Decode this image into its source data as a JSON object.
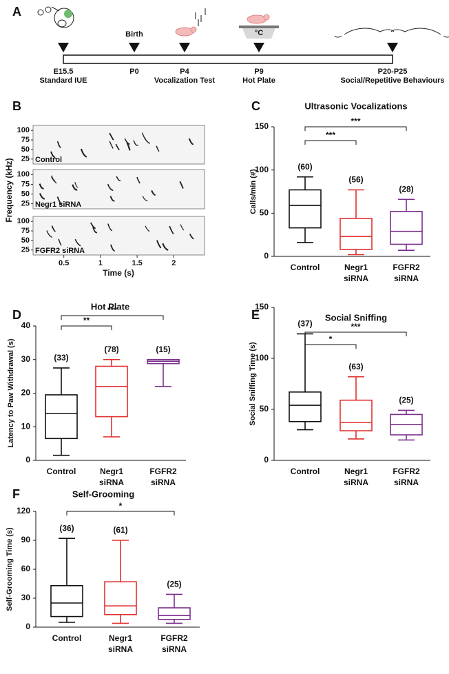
{
  "timeline": {
    "panel": "A",
    "above": "Birth",
    "plate_label": "°C",
    "events": [
      {
        "day": "E15.5",
        "label": "Standard IUE"
      },
      {
        "day": "P0"
      },
      {
        "day": "P4",
        "label": "Vocalization Test"
      },
      {
        "day": "P9",
        "label": "Hot Plate"
      },
      {
        "day": "P20-P25",
        "label": "Social/Repetitive Behaviours"
      }
    ]
  },
  "spectrogram": {
    "panel": "B",
    "ylabel": "Frequency (kHz)",
    "xlabel": "Time (s)",
    "xlim": [
      0.08,
      2.42
    ],
    "xticks": [
      0.5,
      1,
      1.5,
      2
    ],
    "ylim": [
      12,
      113
    ],
    "yticks": [
      25,
      50,
      75,
      100
    ],
    "rows": [
      "Control",
      "Negr1 siRNA",
      "FGFR2 siRNA"
    ]
  },
  "chart_data": [
    {
      "type": "box",
      "panel": "C",
      "title": "Ultrasonic Vocalizations",
      "ylabel": "Calls/min (#)",
      "categories": [
        [
          "Control"
        ],
        [
          "Negr1",
          "siRNA"
        ],
        [
          "FGFR2",
          "siRNA"
        ]
      ],
      "colors": [
        "#111111",
        "#e0312f",
        "#7b2e8c"
      ],
      "boxes": [
        {
          "min": 16,
          "q1": 33,
          "median": 59,
          "q3": 77,
          "max": 92
        },
        {
          "min": 2,
          "q1": 8,
          "median": 23,
          "q3": 44,
          "max": 77
        },
        {
          "min": 7,
          "q1": 14,
          "median": 29,
          "q3": 52,
          "max": 66
        }
      ],
      "n_labels": [
        "(60)",
        "(56)",
        "(28)"
      ],
      "comparisons": [
        {
          "pair": [
            0,
            1
          ],
          "label": "***"
        },
        {
          "pair": [
            0,
            2
          ],
          "label": "***"
        }
      ],
      "ylim": [
        0,
        150
      ],
      "yticks": [
        0,
        50,
        100,
        150
      ]
    },
    {
      "type": "box",
      "panel": "D",
      "title": "Hot Plate",
      "ylabel": "Latency to Paw Withdrawal (s)",
      "categories": [
        [
          "Control"
        ],
        [
          "Negr1",
          "siRNA"
        ],
        [
          "FGFR2",
          "siRNA"
        ]
      ],
      "colors": [
        "#111111",
        "#e0312f",
        "#7b2e8c"
      ],
      "boxes": [
        {
          "min": 1.5,
          "q1": 6.5,
          "median": 14,
          "q3": 19.5,
          "max": 27.5
        },
        {
          "min": 7,
          "q1": 13,
          "median": 22,
          "q3": 28,
          "max": 30
        },
        {
          "min": 22,
          "q1": 28.8,
          "median": 29.5,
          "q3": 30,
          "max": 30
        }
      ],
      "n_labels": [
        "(33)",
        "(78)",
        "(15)"
      ],
      "comparisons": [
        {
          "pair": [
            0,
            1
          ],
          "label": "**"
        },
        {
          "pair": [
            0,
            2
          ],
          "label": "***"
        }
      ],
      "ylim": [
        0,
        40
      ],
      "yticks": [
        0,
        10,
        20,
        30,
        40
      ]
    },
    {
      "type": "box",
      "panel": "E",
      "title": "Social Sniffing",
      "ylabel": "Social Sniffing Time (s)",
      "categories": [
        [
          "Control"
        ],
        [
          "Negr1",
          "siRNA"
        ],
        [
          "FGFR2",
          "siRNA"
        ]
      ],
      "colors": [
        "#111111",
        "#e0312f",
        "#7b2e8c"
      ],
      "boxes": [
        {
          "min": 30,
          "q1": 38,
          "median": 54,
          "q3": 67,
          "max": 124
        },
        {
          "min": 21,
          "q1": 29,
          "median": 37,
          "q3": 59,
          "max": 82
        },
        {
          "min": 20,
          "q1": 25,
          "median": 35,
          "q3": 45,
          "max": 49
        }
      ],
      "n_labels": [
        "(37)",
        "(63)",
        "(25)"
      ],
      "comparisons": [
        {
          "pair": [
            0,
            1
          ],
          "label": "*"
        },
        {
          "pair": [
            0,
            2
          ],
          "label": "***"
        }
      ],
      "ylim": [
        0,
        150
      ],
      "yticks": [
        0,
        50,
        100,
        150
      ]
    },
    {
      "type": "box",
      "panel": "F",
      "title": "Self-Grooming",
      "ylabel": "Self-Grooming Time (s)",
      "categories": [
        [
          "Control"
        ],
        [
          "Negr1",
          "siRNA"
        ],
        [
          "FGFR2",
          "siRNA"
        ]
      ],
      "colors": [
        "#111111",
        "#e0312f",
        "#7b2e8c"
      ],
      "boxes": [
        {
          "min": 5,
          "q1": 11,
          "median": 25,
          "q3": 43,
          "max": 92
        },
        {
          "min": 4,
          "q1": 13,
          "median": 22,
          "q3": 47,
          "max": 90
        },
        {
          "min": 4,
          "q1": 8,
          "median": 12,
          "q3": 20,
          "max": 34
        }
      ],
      "n_labels": [
        "(36)",
        "(61)",
        "(25)"
      ],
      "comparisons": [
        {
          "pair": [
            0,
            2
          ],
          "label": "*"
        }
      ],
      "ylim": [
        0,
        120
      ],
      "yticks": [
        0,
        30,
        60,
        90,
        120
      ]
    }
  ]
}
